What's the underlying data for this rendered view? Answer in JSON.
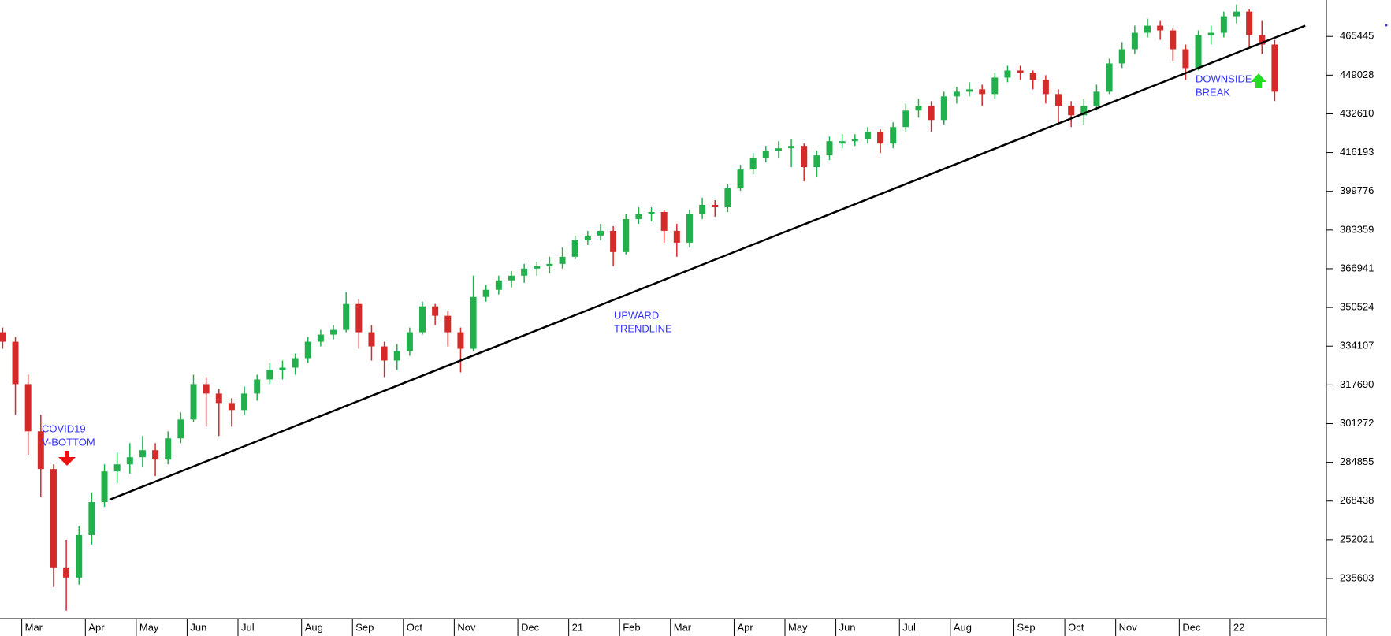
{
  "chart_data": {
    "type": "candlestick",
    "categories": [
      null,
      null,
      "Mar",
      null,
      null,
      null,
      null,
      "Apr",
      null,
      null,
      null,
      "May",
      null,
      null,
      null,
      "Jun",
      null,
      null,
      null,
      "Jul",
      null,
      null,
      null,
      null,
      "Aug",
      null,
      null,
      null,
      "Sep",
      null,
      null,
      null,
      "Oct",
      null,
      null,
      null,
      "Nov",
      null,
      null,
      null,
      null,
      "Dec",
      null,
      null,
      null,
      "21",
      null,
      null,
      null,
      "Feb",
      null,
      null,
      null,
      "Mar",
      null,
      null,
      null,
      null,
      "Apr",
      null,
      null,
      null,
      "May",
      null,
      null,
      null,
      "Jun",
      null,
      null,
      null,
      null,
      "Jul",
      null,
      null,
      null,
      "Aug",
      null,
      null,
      null,
      null,
      "Sep",
      null,
      null,
      null,
      "Oct",
      null,
      null,
      null,
      "Nov",
      null,
      null,
      null,
      null,
      "Dec",
      null,
      null,
      null,
      "22",
      null,
      null,
      null
    ],
    "open": [
      340000,
      336000,
      318000,
      298000,
      282000,
      240000,
      236000,
      254000,
      268000,
      281000,
      284000,
      287000,
      290000,
      286000,
      295000,
      303000,
      318000,
      314000,
      310000,
      307000,
      314000,
      320000,
      324000,
      325000,
      329000,
      336000,
      339000,
      341000,
      352000,
      340000,
      334000,
      328000,
      332000,
      340000,
      351000,
      347000,
      340000,
      333000,
      355000,
      358000,
      362000,
      364000,
      367000,
      368000,
      369000,
      372000,
      379000,
      381000,
      383000,
      374000,
      388000,
      390000,
      391000,
      383000,
      378000,
      390000,
      394000,
      393000,
      401000,
      409000,
      414000,
      417000,
      418000,
      419000,
      410000,
      415000,
      420000,
      421000,
      422000,
      425000,
      420000,
      427000,
      434000,
      436000,
      430000,
      440000,
      442000,
      443000,
      441000,
      448000,
      451000,
      450000,
      447000,
      441000,
      436000,
      432000,
      436000,
      442000,
      454000,
      460000,
      467000,
      470000,
      468000,
      460000,
      452000,
      466000,
      467000,
      474000,
      476000,
      466000,
      462000
    ],
    "high": [
      342000,
      338000,
      322000,
      305000,
      284000,
      252000,
      258000,
      272000,
      284000,
      289000,
      293000,
      296000,
      293000,
      298000,
      306000,
      322000,
      321000,
      316000,
      312000,
      317000,
      322000,
      327000,
      328000,
      331000,
      338000,
      341000,
      343000,
      357000,
      354000,
      343000,
      336000,
      335000,
      342000,
      353000,
      352000,
      349000,
      342000,
      364000,
      360000,
      364000,
      366000,
      369000,
      370000,
      372000,
      376000,
      381000,
      383000,
      386000,
      385000,
      390000,
      393000,
      393000,
      392000,
      386000,
      392000,
      397000,
      396000,
      403000,
      411000,
      416000,
      419000,
      421000,
      422000,
      420000,
      417000,
      423000,
      424000,
      424000,
      427000,
      426000,
      429000,
      437000,
      439000,
      438000,
      442000,
      444000,
      446000,
      445000,
      450000,
      453000,
      453000,
      451000,
      449000,
      443000,
      438000,
      439000,
      445000,
      456000,
      463000,
      470000,
      473000,
      472000,
      469000,
      462000,
      468000,
      470000,
      476000,
      479000,
      477000,
      472000,
      464000
    ],
    "low": [
      333000,
      305000,
      288000,
      270000,
      232000,
      222000,
      233000,
      250000,
      266000,
      276000,
      280000,
      283000,
      279000,
      284000,
      293000,
      302000,
      300000,
      296000,
      300000,
      305000,
      311000,
      318000,
      320000,
      322000,
      327000,
      334000,
      337000,
      340000,
      333000,
      328000,
      321000,
      324000,
      330000,
      339000,
      343000,
      334000,
      323000,
      332000,
      353000,
      356000,
      359000,
      361000,
      364000,
      365000,
      367000,
      371000,
      377000,
      379000,
      368000,
      373000,
      386000,
      387000,
      378000,
      372000,
      376000,
      388000,
      389000,
      391000,
      400000,
      407000,
      412000,
      414000,
      410000,
      404000,
      406000,
      413000,
      418000,
      419000,
      420000,
      416000,
      418000,
      425000,
      431000,
      425000,
      428000,
      437000,
      440000,
      436000,
      439000,
      446000,
      447000,
      443000,
      437000,
      429000,
      427000,
      428000,
      434000,
      441000,
      452000,
      458000,
      465000,
      464000,
      455000,
      447000,
      451000,
      462000,
      465000,
      471000,
      461000,
      458000,
      438000
    ],
    "close": [
      336000,
      318000,
      298000,
      282000,
      240000,
      236000,
      254000,
      268000,
      281000,
      284000,
      287000,
      290000,
      286000,
      295000,
      303000,
      318000,
      314000,
      310000,
      307000,
      314000,
      320000,
      324000,
      325000,
      329000,
      336000,
      339000,
      341000,
      352000,
      340000,
      334000,
      328000,
      332000,
      340000,
      351000,
      347000,
      340000,
      333000,
      355000,
      358000,
      362000,
      364000,
      367000,
      368000,
      369000,
      372000,
      379000,
      381000,
      383000,
      374000,
      388000,
      390000,
      391000,
      383000,
      378000,
      390000,
      394000,
      393000,
      401000,
      409000,
      414000,
      417000,
      418000,
      419000,
      410000,
      415000,
      421000,
      421000,
      422000,
      425000,
      420000,
      427000,
      434000,
      436000,
      430000,
      440000,
      442000,
      443000,
      441000,
      448000,
      451000,
      450000,
      447000,
      441000,
      436000,
      432000,
      436000,
      442000,
      454000,
      460000,
      467000,
      470000,
      468000,
      460000,
      452000,
      466000,
      467000,
      474000,
      476000,
      466000,
      462000,
      442000
    ],
    "up_color": "#21b04b",
    "down_color": "#d42a2a",
    "ylim": [
      218559,
      480884
    ],
    "yticks": [
      235603,
      252021,
      268438,
      284855,
      301272,
      317690,
      334107,
      350524,
      366941,
      383359,
      399776,
      416193,
      432610,
      449028,
      465445
    ],
    "trendline": {
      "x": [
        8.4,
        102.4
      ],
      "values": [
        269000,
        470000
      ],
      "color": "#000000"
    },
    "annotations": [
      {
        "lines": [
          "COVID19",
          "V-BOTTOM"
        ],
        "color": "#3333ff"
      },
      {
        "lines": [
          "UPWARD",
          "TRENDLINE"
        ],
        "color": "#3333ff"
      },
      {
        "lines": [
          "DOWNSIDE",
          "BREAK"
        ],
        "color": "#3333ff"
      }
    ]
  }
}
